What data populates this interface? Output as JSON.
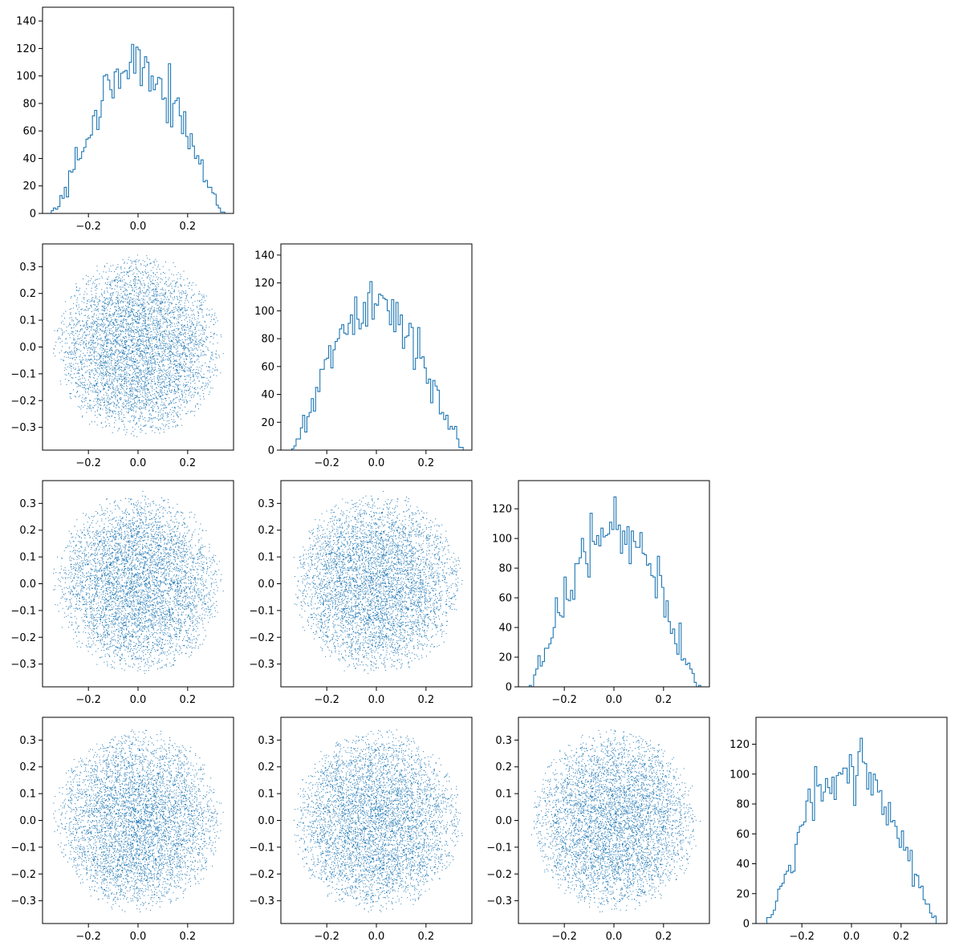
{
  "chart_data": {
    "type": "corner-plot",
    "grid": {
      "rows": 4,
      "cols": 4,
      "layout": "lower-triangle"
    },
    "colors": {
      "series": "#1f77b4",
      "axes": "#000000",
      "background": "#ffffff"
    },
    "x_axis": {
      "lim": [
        -0.385,
        0.385
      ],
      "ticks": [
        -0.2,
        0.0,
        0.2
      ],
      "tick_labels": [
        "−0.2",
        "0.0",
        "0.2"
      ]
    },
    "scatter_y_axis": {
      "lim": [
        -0.385,
        0.385
      ],
      "ticks": [
        -0.3,
        -0.2,
        -0.1,
        0.0,
        0.1,
        0.2,
        0.3
      ],
      "tick_labels": [
        "−0.3",
        "−0.2",
        "−0.1",
        "0.0",
        "0.1",
        "0.2",
        "0.3"
      ]
    },
    "histogram": {
      "bins": 80,
      "range": [
        -0.35,
        0.35
      ],
      "style": "step",
      "description": "Roughly semicircular counts of about 5000 samples uniformly distributed in a 4-dimensional ball of radius 0.35"
    },
    "scatter": {
      "points_per_panel": 5000,
      "style": "pixel markers",
      "description": "Points fill a disc of radius about 0.35 centered at the origin, denser toward the center"
    },
    "diagonal": [
      {
        "row": 0,
        "ylim": [
          0,
          150
        ],
        "ticks": [
          0,
          20,
          40,
          60,
          80,
          100,
          120,
          140
        ],
        "tick_labels": [
          "0",
          "20",
          "40",
          "60",
          "80",
          "100",
          "120",
          "140"
        ]
      },
      {
        "row": 1,
        "ylim": [
          0,
          148
        ],
        "ticks": [
          0,
          20,
          40,
          60,
          80,
          100,
          120,
          140
        ],
        "tick_labels": [
          "0",
          "20",
          "40",
          "60",
          "80",
          "100",
          "120",
          "140"
        ]
      },
      {
        "row": 2,
        "ylim": [
          0,
          139
        ],
        "ticks": [
          0,
          20,
          40,
          60,
          80,
          100,
          120
        ],
        "tick_labels": [
          "0",
          "20",
          "40",
          "60",
          "80",
          "100",
          "120"
        ]
      },
      {
        "row": 3,
        "ylim": [
          0,
          138
        ],
        "ticks": [
          0,
          20,
          40,
          60,
          80,
          100,
          120
        ],
        "tick_labels": [
          "0",
          "20",
          "40",
          "60",
          "80",
          "100",
          "120"
        ]
      }
    ]
  }
}
